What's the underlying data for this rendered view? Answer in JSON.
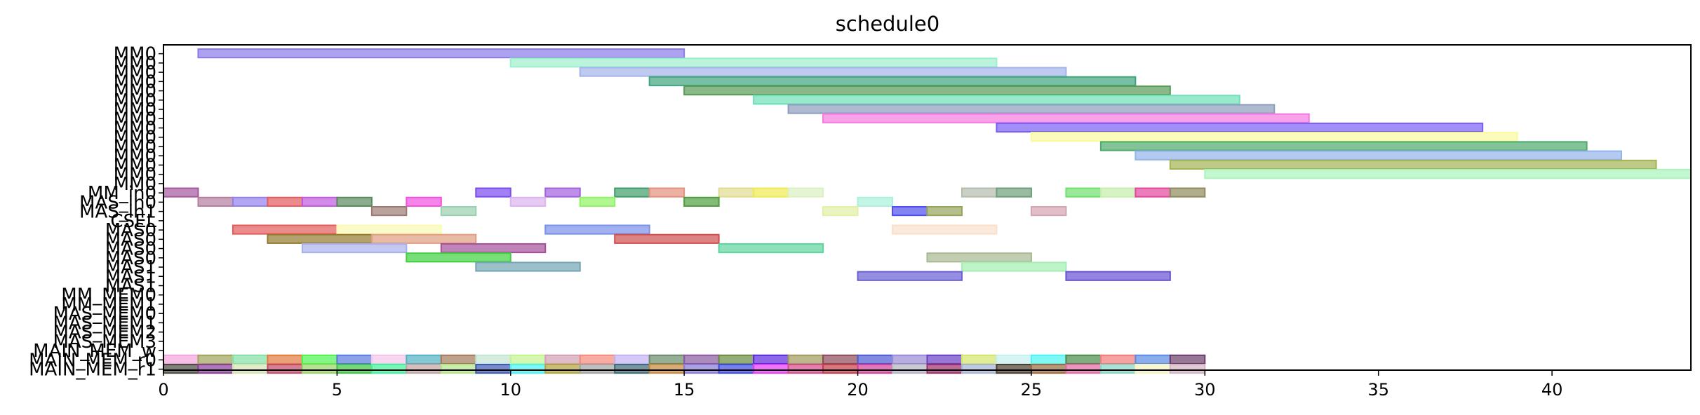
{
  "chart_data": {
    "type": "gantt",
    "title": "schedule0",
    "xlim": [
      0,
      44
    ],
    "x_ticks": [
      0,
      5,
      10,
      15,
      20,
      25,
      30,
      35,
      40
    ],
    "x_tick_labels": [
      "0",
      "5",
      "10",
      "15",
      "20",
      "25",
      "30",
      "35",
      "40"
    ],
    "rows": [
      "MM0",
      "MM0",
      "MM0",
      "MM0",
      "MM0",
      "MM0",
      "MM0",
      "MM0",
      "MM0",
      "MM0",
      "MM0",
      "MM0",
      "MM0",
      "MM0",
      "MM0",
      "MM_in0",
      "MAS_in0",
      "MAS_in1",
      "CSEL",
      "MAS0",
      "MAS0",
      "MAS0",
      "MAS0",
      "MAS1",
      "MAS1",
      "MAS1",
      "MM_MEM0",
      "MM_MEM1",
      "MAS_MEM0",
      "MAS_MEM1",
      "MAS_MEM2",
      "MAS_MEM3",
      "MAIN_MEM_w",
      "MAIN_MEM_r0",
      "MAIN_MEM_r1"
    ],
    "bars": [
      {
        "row": 0,
        "start": 1,
        "end": 15,
        "color": "#8a7ae8"
      },
      {
        "row": 1,
        "start": 10,
        "end": 24,
        "color": "#9bf0cc"
      },
      {
        "row": 2,
        "start": 12,
        "end": 26,
        "color": "#a4b4ea"
      },
      {
        "row": 3,
        "start": 14,
        "end": 28,
        "color": "#3ea47c"
      },
      {
        "row": 4,
        "start": 15,
        "end": 29,
        "color": "#5a9a56"
      },
      {
        "row": 5,
        "start": 17,
        "end": 31,
        "color": "#6ee0b8"
      },
      {
        "row": 6,
        "start": 18,
        "end": 32,
        "color": "#8c9cbc"
      },
      {
        "row": 7,
        "start": 19,
        "end": 33,
        "color": "#f47ae0"
      },
      {
        "row": 8,
        "start": 24,
        "end": 38,
        "color": "#7a5ef4"
      },
      {
        "row": 9,
        "start": 25,
        "end": 39,
        "color": "#fafa9e"
      },
      {
        "row": 10,
        "start": 27,
        "end": 41,
        "color": "#4eaa6c"
      },
      {
        "row": 11,
        "start": 28,
        "end": 42,
        "color": "#94b4ea"
      },
      {
        "row": 12,
        "start": 29,
        "end": 43,
        "color": "#a4b454"
      },
      {
        "row": 13,
        "start": 30,
        "end": 44,
        "color": "#aaf4ba"
      },
      {
        "row": 15,
        "start": 0,
        "end": 1,
        "color": "#a4589e"
      },
      {
        "row": 15,
        "start": 9,
        "end": 10,
        "color": "#7a4cf0"
      },
      {
        "row": 15,
        "start": 11,
        "end": 12,
        "color": "#a260dc"
      },
      {
        "row": 15,
        "start": 13,
        "end": 14,
        "color": "#3e9c6a"
      },
      {
        "row": 15,
        "start": 14,
        "end": 15,
        "color": "#e4907e"
      },
      {
        "row": 15,
        "start": 16,
        "end": 17,
        "color": "#e0dc8e"
      },
      {
        "row": 15,
        "start": 17,
        "end": 18,
        "color": "#eeea50"
      },
      {
        "row": 15,
        "start": 18,
        "end": 19,
        "color": "#dcf0c4"
      },
      {
        "row": 15,
        "start": 23,
        "end": 24,
        "color": "#b4bcae"
      },
      {
        "row": 15,
        "start": 24,
        "end": 25,
        "color": "#6e9e7a"
      },
      {
        "row": 15,
        "start": 26,
        "end": 27,
        "color": "#6ee06e"
      },
      {
        "row": 15,
        "start": 27,
        "end": 28,
        "color": "#c6eeac"
      },
      {
        "row": 15,
        "start": 28,
        "end": 29,
        "color": "#e4469e"
      },
      {
        "row": 15,
        "start": 29,
        "end": 30,
        "color": "#8e8a5c"
      },
      {
        "row": 16,
        "start": 1,
        "end": 2,
        "color": "#b47e9e"
      },
      {
        "row": 16,
        "start": 2,
        "end": 3,
        "color": "#9480ec"
      },
      {
        "row": 16,
        "start": 3,
        "end": 4,
        "color": "#e45a5e"
      },
      {
        "row": 16,
        "start": 4,
        "end": 5,
        "color": "#c05ae0"
      },
      {
        "row": 16,
        "start": 5,
        "end": 6,
        "color": "#5a8a5c"
      },
      {
        "row": 16,
        "start": 7,
        "end": 8,
        "color": "#f450e0"
      },
      {
        "row": 16,
        "start": 10,
        "end": 11,
        "color": "#dcb4ee"
      },
      {
        "row": 16,
        "start": 12,
        "end": 13,
        "color": "#8ef464"
      },
      {
        "row": 16,
        "start": 15,
        "end": 16,
        "color": "#4e9e3e"
      },
      {
        "row": 16,
        "start": 20,
        "end": 21,
        "color": "#aaf0dc"
      },
      {
        "row": 17,
        "start": 6,
        "end": 7,
        "color": "#9c7a74"
      },
      {
        "row": 17,
        "start": 8,
        "end": 9,
        "color": "#9ad0b0"
      },
      {
        "row": 17,
        "start": 19,
        "end": 20,
        "color": "#e0f0a4"
      },
      {
        "row": 17,
        "start": 21,
        "end": 22,
        "color": "#4e4ef0"
      },
      {
        "row": 17,
        "start": 22,
        "end": 23,
        "color": "#94a45a"
      },
      {
        "row": 17,
        "start": 25,
        "end": 26,
        "color": "#d4a4b0"
      },
      {
        "row": 19,
        "start": 2,
        "end": 5,
        "color": "#e45a5a"
      },
      {
        "row": 19,
        "start": 5,
        "end": 8,
        "color": "#fafab4"
      },
      {
        "row": 19,
        "start": 11,
        "end": 14,
        "color": "#7a90e8"
      },
      {
        "row": 19,
        "start": 21,
        "end": 24,
        "color": "#fae0cc"
      },
      {
        "row": 20,
        "start": 3,
        "end": 6,
        "color": "#947a2e"
      },
      {
        "row": 20,
        "start": 6,
        "end": 9,
        "color": "#e09e80"
      },
      {
        "row": 20,
        "start": 13,
        "end": 16,
        "color": "#d04e4e"
      },
      {
        "row": 21,
        "start": 4,
        "end": 7,
        "color": "#a8b0ec"
      },
      {
        "row": 21,
        "start": 8,
        "end": 11,
        "color": "#a4509a"
      },
      {
        "row": 21,
        "start": 16,
        "end": 19,
        "color": "#5ed49e"
      },
      {
        "row": 22,
        "start": 7,
        "end": 10,
        "color": "#3ed03e"
      },
      {
        "row": 22,
        "start": 22,
        "end": 25,
        "color": "#a8b890"
      },
      {
        "row": 23,
        "start": 9,
        "end": 12,
        "color": "#74a4b4"
      },
      {
        "row": 23,
        "start": 23,
        "end": 26,
        "color": "#a4eeb4"
      },
      {
        "row": 24,
        "start": 20,
        "end": 23,
        "color": "#6a60d4"
      },
      {
        "row": 24,
        "start": 26,
        "end": 29,
        "color": "#6a50d4"
      },
      {
        "row": 33,
        "start": 0,
        "end": 1,
        "color": "#f4a4dc"
      },
      {
        "row": 33,
        "start": 1,
        "end": 2,
        "color": "#a0a45a"
      },
      {
        "row": 33,
        "start": 2,
        "end": 3,
        "color": "#84e0a4"
      },
      {
        "row": 33,
        "start": 3,
        "end": 4,
        "color": "#e07a3e"
      },
      {
        "row": 33,
        "start": 4,
        "end": 5,
        "color": "#4ef44e"
      },
      {
        "row": 33,
        "start": 5,
        "end": 6,
        "color": "#5a7ae0"
      },
      {
        "row": 33,
        "start": 6,
        "end": 7,
        "color": "#f4c4e8"
      },
      {
        "row": 33,
        "start": 7,
        "end": 8,
        "color": "#50b0c4"
      },
      {
        "row": 33,
        "start": 8,
        "end": 9,
        "color": "#a47a5a"
      },
      {
        "row": 33,
        "start": 9,
        "end": 10,
        "color": "#c4e4d4"
      },
      {
        "row": 33,
        "start": 10,
        "end": 11,
        "color": "#c4f48e"
      },
      {
        "row": 33,
        "start": 11,
        "end": 12,
        "color": "#d0a0b4"
      },
      {
        "row": 33,
        "start": 12,
        "end": 13,
        "color": "#f48a7a"
      },
      {
        "row": 33,
        "start": 13,
        "end": 14,
        "color": "#c4b0f4"
      },
      {
        "row": 33,
        "start": 14,
        "end": 15,
        "color": "#6a8a6a"
      },
      {
        "row": 33,
        "start": 15,
        "end": 16,
        "color": "#8a5aa0"
      },
      {
        "row": 33,
        "start": 16,
        "end": 17,
        "color": "#6a8a3e"
      },
      {
        "row": 33,
        "start": 17,
        "end": 18,
        "color": "#5a2ae0"
      },
      {
        "row": 33,
        "start": 18,
        "end": 19,
        "color": "#a09a5a"
      },
      {
        "row": 33,
        "start": 19,
        "end": 20,
        "color": "#8a4a5a"
      },
      {
        "row": 33,
        "start": 20,
        "end": 21,
        "color": "#4a5ad4"
      },
      {
        "row": 33,
        "start": 21,
        "end": 22,
        "color": "#9a8ad4"
      },
      {
        "row": 33,
        "start": 22,
        "end": 23,
        "color": "#6a3ec4"
      },
      {
        "row": 33,
        "start": 23,
        "end": 24,
        "color": "#d4e46a"
      },
      {
        "row": 33,
        "start": 24,
        "end": 25,
        "color": "#c4f0f0"
      },
      {
        "row": 33,
        "start": 25,
        "end": 26,
        "color": "#4af4f4"
      },
      {
        "row": 33,
        "start": 26,
        "end": 27,
        "color": "#4a8a4a"
      },
      {
        "row": 33,
        "start": 27,
        "end": 28,
        "color": "#f47a7a"
      },
      {
        "row": 33,
        "start": 28,
        "end": 29,
        "color": "#5a8ae4"
      },
      {
        "row": 33,
        "start": 29,
        "end": 30,
        "color": "#6a3e6a"
      },
      {
        "row": 34,
        "start": 0,
        "end": 1,
        "color": "#4a4a3e"
      },
      {
        "row": 34,
        "start": 1,
        "end": 2,
        "color": "#8a3e9a"
      },
      {
        "row": 34,
        "start": 2,
        "end": 3,
        "color": "#d4e4b4"
      },
      {
        "row": 34,
        "start": 3,
        "end": 4,
        "color": "#c44a6a"
      },
      {
        "row": 34,
        "start": 4,
        "end": 5,
        "color": "#9ad46a"
      },
      {
        "row": 34,
        "start": 5,
        "end": 6,
        "color": "#3ec44a"
      },
      {
        "row": 34,
        "start": 6,
        "end": 7,
        "color": "#3ef49a"
      },
      {
        "row": 34,
        "start": 7,
        "end": 8,
        "color": "#c4a4a4"
      },
      {
        "row": 34,
        "start": 8,
        "end": 9,
        "color": "#b4e48a"
      },
      {
        "row": 34,
        "start": 9,
        "end": 10,
        "color": "#3e5ab4"
      },
      {
        "row": 34,
        "start": 10,
        "end": 11,
        "color": "#4af4f4"
      },
      {
        "row": 34,
        "start": 11,
        "end": 12,
        "color": "#b4a43e"
      },
      {
        "row": 34,
        "start": 12,
        "end": 13,
        "color": "#a4a4a4"
      },
      {
        "row": 34,
        "start": 13,
        "end": 14,
        "color": "#3e6a7a"
      },
      {
        "row": 34,
        "start": 14,
        "end": 15,
        "color": "#c48a3e"
      },
      {
        "row": 34,
        "start": 15,
        "end": 16,
        "color": "#8a7ad4"
      },
      {
        "row": 34,
        "start": 16,
        "end": 17,
        "color": "#3e4ae4"
      },
      {
        "row": 34,
        "start": 17,
        "end": 18,
        "color": "#e43ef4"
      },
      {
        "row": 34,
        "start": 18,
        "end": 19,
        "color": "#d44a8a"
      },
      {
        "row": 34,
        "start": 19,
        "end": 20,
        "color": "#c43e4a"
      },
      {
        "row": 34,
        "start": 20,
        "end": 21,
        "color": "#d43e9a"
      },
      {
        "row": 34,
        "start": 21,
        "end": 22,
        "color": "#b4b4c4"
      },
      {
        "row": 34,
        "start": 22,
        "end": 23,
        "color": "#9a2e6a"
      },
      {
        "row": 34,
        "start": 23,
        "end": 24,
        "color": "#a4b4d4"
      },
      {
        "row": 34,
        "start": 24,
        "end": 25,
        "color": "#4a3e2e"
      },
      {
        "row": 34,
        "start": 25,
        "end": 26,
        "color": "#9a6a3e"
      },
      {
        "row": 34,
        "start": 26,
        "end": 27,
        "color": "#e46aa4"
      },
      {
        "row": 34,
        "start": 27,
        "end": 28,
        "color": "#8ad4c4"
      },
      {
        "row": 34,
        "start": 28,
        "end": 29,
        "color": "#f4f4c4"
      },
      {
        "row": 34,
        "start": 29,
        "end": 30,
        "color": "#d4b4c4"
      }
    ]
  }
}
